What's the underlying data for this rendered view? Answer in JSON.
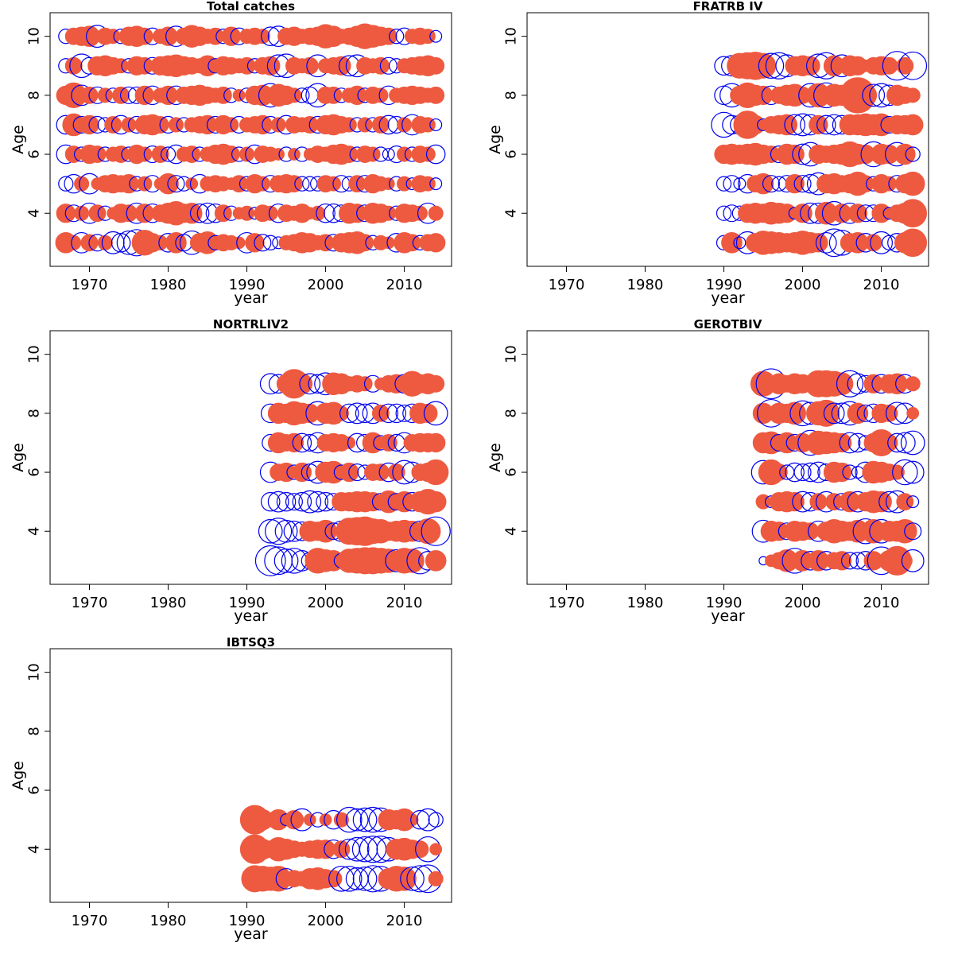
{
  "figure": {
    "pos_color": "#ee5a40",
    "neg_color": "#0000ee"
  },
  "chart_data": [
    {
      "type": "bubble",
      "title": "Total catches",
      "xlabel": "year",
      "ylabel": "Age",
      "xlim": [
        1965,
        2016
      ],
      "ylim": [
        2.2,
        10.8
      ],
      "x_ticks": [
        "1970",
        "1980",
        "1990",
        "2000",
        "2010"
      ],
      "y_ticks": [
        "4",
        "6",
        "8",
        "10"
      ],
      "ages": [
        3,
        4,
        5,
        6,
        7,
        8,
        9,
        10
      ],
      "years": [
        1967,
        2014
      ],
      "values": [
        [
          0.6,
          0.3,
          -0.6,
          0.4,
          -0.4,
          0.3,
          -0.7,
          -0.5,
          -0.8,
          -1.0,
          0.9,
          0.5,
          0.3,
          -0.5,
          0.6,
          -0.4,
          -0.8,
          0.5,
          0.7,
          -0.3,
          0.4,
          0.3,
          0.2,
          -0.6,
          0.5,
          -0.4,
          -0.3,
          -0.2,
          0.3,
          0.4,
          0.6,
          0.5,
          0.3,
          0.4,
          -0.4,
          0.5,
          0.6,
          0.7,
          0.4,
          -0.3,
          0.3,
          0.2,
          -0.5,
          0.6,
          0.4,
          -0.3,
          0.4,
          0.5
        ],
        [
          0.5,
          -0.4,
          0.3,
          -0.6,
          0.4,
          -0.3,
          0.2,
          0.5,
          0.4,
          -0.6,
          0.5,
          -0.5,
          0.4,
          0.6,
          0.8,
          0.5,
          0.6,
          -0.5,
          -0.6,
          -0.5,
          0.4,
          -0.3,
          0.2,
          0.3,
          -0.2,
          0.4,
          0.3,
          -0.5,
          0.4,
          0.3,
          0.5,
          0.2,
          0.3,
          -0.5,
          -0.5,
          -0.4,
          0.6,
          0.5,
          -0.4,
          0.6,
          0.5,
          0.3,
          -0.3,
          0.5,
          0.4,
          0.3,
          -0.6,
          0.3
        ],
        [
          -0.3,
          -0.5,
          0.3,
          -0.6,
          0.2,
          0.4,
          0.5,
          0.4,
          0.5,
          -0.3,
          0.3,
          -0.4,
          0.2,
          0.6,
          -0.4,
          -0.3,
          0.2,
          -0.5,
          0.3,
          0.4,
          0.3,
          0.2,
          0.4,
          -0.3,
          0.5,
          0.3,
          -0.4,
          0.4,
          0.5,
          0.4,
          -0.3,
          -0.3,
          -0.3,
          0.4,
          0.3,
          -0.4,
          -0.3,
          0.4,
          -0.4,
          0.5,
          0.3,
          0.2,
          -0.3,
          0.3,
          -0.2,
          0.4,
          0.3,
          -0.2
        ],
        [
          -0.5,
          0.4,
          -0.3,
          0.5,
          0.4,
          -0.3,
          0.3,
          0.4,
          -0.3,
          0.5,
          0.3,
          -0.4,
          0.4,
          -0.3,
          -0.5,
          0.3,
          0.4,
          -0.3,
          0.3,
          0.5,
          0.6,
          0.4,
          -0.3,
          0.3,
          -0.5,
          0.4,
          0.3,
          0.2,
          -0.3,
          0.2,
          -0.3,
          0.2,
          0.4,
          0.3,
          0.5,
          0.6,
          0.4,
          -0.3,
          0.4,
          0.3,
          -0.3,
          -0.2,
          -0.4,
          0.3,
          -0.3,
          0.4,
          0.3,
          -0.5
        ],
        [
          -0.5,
          0.7,
          -0.4,
          0.5,
          -0.4,
          -0.3,
          0.4,
          -0.5,
          0.3,
          -0.4,
          0.5,
          0.6,
          0.4,
          -0.4,
          0.3,
          -0.3,
          0.3,
          0.4,
          0.5,
          -0.4,
          0.5,
          0.3,
          -0.4,
          0.3,
          0.4,
          0.5,
          -0.4,
          0.3,
          -0.5,
          0.4,
          0.3,
          0.4,
          -0.4,
          0.5,
          0.6,
          0.4,
          0.3,
          -0.3,
          0.3,
          -0.3,
          0.4,
          -0.5,
          -0.4,
          0.3,
          -0.6,
          0.4,
          0.3,
          -0.2
        ],
        [
          0.5,
          0.9,
          -0.6,
          0.4,
          -0.4,
          0.3,
          -0.3,
          0.4,
          -0.4,
          -0.4,
          0.5,
          -0.5,
          0.3,
          0.5,
          -0.5,
          0.4,
          0.5,
          0.6,
          0.4,
          0.3,
          0.4,
          -0.3,
          0.2,
          -0.3,
          0.5,
          0.6,
          -0.8,
          0.7,
          0.5,
          0.3,
          -0.3,
          -0.4,
          -0.8,
          0.4,
          0.4,
          -0.3,
          0.3,
          0.5,
          -0.3,
          0.4,
          0.3,
          -0.5,
          0.3,
          0.4,
          0.5,
          0.4,
          0.3,
          0.4
        ],
        [
          -0.3,
          0.4,
          -0.8,
          -0.4,
          0.5,
          0.6,
          0.4,
          0.3,
          -0.3,
          0.5,
          0.4,
          -0.4,
          0.5,
          0.6,
          0.7,
          0.5,
          0.4,
          0.3,
          0.6,
          -0.3,
          0.5,
          0.4,
          0.3,
          0.4,
          -0.3,
          0.4,
          0.5,
          -0.7,
          -0.8,
          0.4,
          0.3,
          0.4,
          -0.7,
          0.3,
          0.4,
          0.5,
          -0.6,
          -0.7,
          0.4,
          0.3,
          0.4,
          -0.4,
          -0.3,
          0.3,
          0.4,
          0.5,
          0.6,
          0.4
        ],
        [
          -0.3,
          0.4,
          0.5,
          0.6,
          -0.7,
          0.4,
          0.3,
          -0.3,
          0.5,
          0.6,
          0.4,
          -0.4,
          0.3,
          0.5,
          -0.6,
          0.4,
          0.7,
          0.5,
          0.3,
          0.4,
          -0.3,
          0.5,
          -0.4,
          0.3,
          0.4,
          0.3,
          -0.5,
          -0.6,
          0.4,
          0.5,
          0.3,
          0.4,
          0.5,
          0.8,
          0.6,
          0.3,
          0.4,
          0.6,
          0.9,
          0.7,
          0.5,
          0.4,
          -0.3,
          -0.4,
          0.3,
          0.4,
          0.3,
          -0.2
        ]
      ]
    },
    {
      "type": "bubble",
      "title": "FRATRB IV",
      "xlabel": "year",
      "ylabel": "Age",
      "xlim": [
        1965,
        2016
      ],
      "ylim": [
        2.2,
        10.8
      ],
      "x_ticks": [
        "1970",
        "1980",
        "1990",
        "2000",
        "2010"
      ],
      "y_ticks": [
        "4",
        "6",
        "8",
        "10"
      ],
      "ages": [
        3,
        4,
        5,
        6,
        7,
        8,
        9
      ],
      "years": [
        1990,
        2014
      ],
      "values": [
        [
          -0.3,
          0.6,
          -0.2,
          -0.7,
          0.5,
          0.8,
          0.7,
          0.6,
          0.5,
          0.6,
          0.8,
          0.6,
          0.5,
          -0.6,
          -1.1,
          -0.9,
          0.5,
          0.6,
          -0.5,
          0.4,
          -0.7,
          -0.3,
          -0.5,
          0.6,
          1.1
        ],
        [
          -0.3,
          -0.4,
          -0.3,
          0.5,
          0.6,
          0.5,
          0.7,
          0.6,
          0.5,
          -0.2,
          0.5,
          -0.6,
          -0.6,
          0.7,
          -0.8,
          0.5,
          -0.6,
          0.5,
          -0.4,
          -0.4,
          0.5,
          -0.2,
          0.4,
          0.6,
          1.1
        ],
        [
          -0.3,
          -0.4,
          -0.2,
          -0.5,
          0.4,
          0.6,
          -0.4,
          -0.3,
          -0.4,
          0.5,
          -0.4,
          -0.5,
          -0.7,
          0.5,
          0.6,
          0.4,
          0.5,
          0.8,
          0.4,
          -0.3,
          0.5,
          0.3,
          -0.4,
          0.5,
          0.8
        ],
        [
          0.5,
          0.6,
          0.5,
          0.6,
          0.7,
          0.5,
          0.4,
          -0.4,
          0.6,
          0.5,
          -0.6,
          -0.8,
          0.5,
          0.4,
          0.5,
          0.6,
          0.9,
          0.6,
          0.5,
          -0.9,
          0.6,
          0.5,
          -0.8,
          0.6,
          -0.3
        ],
        [
          -0.9,
          -0.5,
          -0.5,
          1.1,
          0.5,
          -0.2,
          0.4,
          0.5,
          0.6,
          -0.6,
          -0.7,
          -0.6,
          0.5,
          -0.5,
          -0.6,
          -0.5,
          0.6,
          0.6,
          0.7,
          0.6,
          0.7,
          -0.4,
          0.5,
          0.5,
          0.6
        ],
        [
          -0.5,
          -0.8,
          0.5,
          0.9,
          0.6,
          0.5,
          -0.5,
          0.4,
          0.6,
          0.7,
          0.4,
          -0.8,
          0.8,
          -0.9,
          0.7,
          0.6,
          -0.5,
          1.8,
          0.7,
          -0.7,
          -0.8,
          -0.6,
          0.6,
          0.4,
          0.3
        ],
        [
          -0.5,
          -0.6,
          0.9,
          1.0,
          1.1,
          0.9,
          -0.9,
          -1.0,
          -0.7,
          0.5,
          0.6,
          0.5,
          -0.8,
          -1.0,
          0.6,
          -0.7,
          0.6,
          0.5,
          0.2,
          0.4,
          0.5,
          0.4,
          -1.2,
          0.4,
          -1.1
        ]
      ]
    },
    {
      "type": "bubble",
      "title": "NORTRLIV2",
      "xlabel": "year",
      "ylabel": "Age",
      "xlim": [
        1965,
        2016
      ],
      "ylim": [
        2.2,
        10.8
      ],
      "x_ticks": [
        "1970",
        "1980",
        "1990",
        "2000",
        "2010"
      ],
      "y_ticks": [
        "4",
        "6",
        "8",
        "10"
      ],
      "ages": [
        3,
        4,
        5,
        6,
        7,
        8,
        9
      ],
      "years": [
        1993,
        2014
      ],
      "values": [
        [
          -1.3,
          -1.1,
          -0.8,
          -0.9,
          -0.6,
          -0.4,
          0.9,
          0.7,
          0.6,
          -0.3,
          0.8,
          0.9,
          1.0,
          1.0,
          0.9,
          0.8,
          -0.7,
          0.9,
          0.8,
          -1.0,
          -0.5,
          0.6
        ],
        [
          -0.8,
          -1.0,
          -0.7,
          -0.6,
          -0.5,
          0.6,
          0.5,
          0.7,
          -0.4,
          -0.6,
          1.0,
          1.1,
          1.2,
          0.9,
          0.8,
          0.5,
          0.6,
          0.7,
          0.6,
          -0.6,
          0.9,
          -1.2
        ],
        [
          -0.5,
          -0.6,
          -0.5,
          -0.4,
          -0.5,
          -0.7,
          -0.6,
          -0.5,
          -0.4,
          0.5,
          0.5,
          0.6,
          0.6,
          0.5,
          -0.4,
          0.7,
          -0.4,
          0.6,
          -0.5,
          0.6,
          0.9,
          0.6
        ],
        [
          -0.6,
          0.4,
          0.5,
          -0.3,
          0.5,
          -0.4,
          -0.7,
          0.6,
          0.7,
          -0.3,
          0.5,
          -0.4,
          -0.3,
          0.4,
          0.4,
          -0.5,
          0.4,
          -0.8,
          -0.6,
          0.4,
          0.5,
          0.9
        ],
        [
          -0.4,
          0.6,
          0.4,
          0.5,
          -0.5,
          -0.4,
          -0.6,
          0.4,
          0.5,
          0.4,
          0.2,
          -0.5,
          -0.4,
          0.6,
          -0.3,
          0.4,
          -0.4,
          -0.6,
          0.4,
          0.5,
          0.5,
          0.5
        ],
        [
          -0.5,
          0.6,
          0.5,
          0.8,
          0.6,
          0.5,
          -0.8,
          0.6,
          0.7,
          0.3,
          -0.5,
          -0.6,
          -0.5,
          -0.6,
          0.4,
          -0.5,
          -0.5,
          -0.4,
          -0.5,
          0.6,
          0.5,
          -0.8
        ],
        [
          -0.6,
          -0.5,
          0.5,
          1.2,
          0.6,
          -0.6,
          -0.5,
          -0.7,
          0.7,
          0.6,
          0.3,
          0.4,
          0.3,
          -0.4,
          0.2,
          0.4,
          0.5,
          -0.5,
          0.9,
          0.5,
          0.6,
          0.4
        ]
      ]
    },
    {
      "type": "bubble",
      "title": "GEROTBIV",
      "xlabel": "year",
      "ylabel": "Age",
      "xlim": [
        1965,
        2016
      ],
      "ylim": [
        2.2,
        10.8
      ],
      "x_ticks": [
        "1970",
        "1980",
        "1990",
        "2000",
        "2010"
      ],
      "y_ticks": [
        "4",
        "6",
        "8",
        "10"
      ],
      "ages": [
        3,
        4,
        5,
        6,
        7,
        8,
        9
      ],
      "years": [
        1995,
        2014
      ],
      "values": [
        [
          -0.1,
          0.2,
          0.4,
          0.7,
          -0.9,
          0.6,
          -0.5,
          0.6,
          -0.5,
          0.4,
          0.5,
          -0.4,
          -0.4,
          -0.5,
          0.5,
          -1.1,
          0.6,
          1.2,
          0.3,
          -0.7
        ],
        [
          -0.7,
          0.6,
          0.5,
          -0.4,
          0.6,
          0.5,
          0.4,
          -0.6,
          0.5,
          0.8,
          0.6,
          0.5,
          0.7,
          -0.9,
          0.8,
          -0.8,
          0.6,
          0.6,
          0.8,
          -0.4
        ],
        [
          0.3,
          -0.2,
          0.5,
          0.6,
          0.5,
          -0.6,
          -0.5,
          0.4,
          -0.6,
          0.4,
          -0.4,
          0.6,
          -0.6,
          0.5,
          0.7,
          0.6,
          -0.6,
          -0.7,
          0.4,
          -0.2
        ],
        [
          -0.8,
          0.9,
          0.4,
          -0.3,
          -0.5,
          -0.4,
          -0.5,
          -0.6,
          -0.4,
          0.6,
          0.5,
          -0.3,
          -0.2,
          -0.6,
          0.7,
          0.6,
          0.4,
          0.3,
          -0.9,
          -0.7
        ],
        [
          0.6,
          0.7,
          -0.4,
          0.6,
          -0.4,
          0.5,
          -0.9,
          0.8,
          0.7,
          0.6,
          0.5,
          -0.6,
          -0.5,
          -0.3,
          0.5,
          1.0,
          0.4,
          -0.5,
          -0.6,
          -0.8
        ],
        [
          0.6,
          -1.1,
          0.6,
          0.5,
          0.7,
          -0.9,
          -0.7,
          0.8,
          1.0,
          -0.6,
          -0.6,
          -0.8,
          0.6,
          -0.4,
          -0.5,
          0.5,
          0.4,
          -0.7,
          -0.6,
          0.2
        ],
        [
          0.9,
          -1.3,
          0.6,
          0.4,
          0.6,
          0.5,
          0.3,
          1.0,
          1.0,
          0.9,
          0.7,
          -1.0,
          -0.6,
          -0.4,
          0.5,
          -0.5,
          0.5,
          0.6,
          -0.5,
          0.3
        ]
      ]
    },
    {
      "type": "bubble",
      "title": "IBTSQ3",
      "xlabel": "year",
      "ylabel": "Age",
      "xlim": [
        1965,
        2016
      ],
      "ylim": [
        2.2,
        10.8
      ],
      "x_ticks": [
        "1970",
        "1980",
        "1990",
        "2000",
        "2010"
      ],
      "y_ticks": [
        "4",
        "6",
        "8",
        "10"
      ],
      "ages": [
        3,
        4,
        5
      ],
      "years": [
        1991,
        2014
      ],
      "values": [
        [
          1.0,
          0.9,
          0.8,
          0.9,
          -0.6,
          0.4,
          0.3,
          0.6,
          0.7,
          0.5,
          0.4,
          -0.9,
          -0.9,
          -0.7,
          -0.8,
          -1.0,
          -0.9,
          0.6,
          0.9,
          0.8,
          -0.8,
          -1.0,
          -1.1,
          0.3
        ],
        [
          1.2,
          0.6,
          0.4,
          0.8,
          0.6,
          0.4,
          0.3,
          0.4,
          0.5,
          0.5,
          -0.5,
          0.4,
          -0.6,
          -0.8,
          -0.9,
          -1.0,
          -1.0,
          -0.8,
          0.6,
          0.7,
          0.5,
          0.4,
          -0.9,
          0.2
        ],
        [
          1.2,
          0.6,
          0.3,
          0.6,
          -0.2,
          0.5,
          -0.7,
          0.2,
          -0.3,
          0.2,
          -0.5,
          0.3,
          -0.9,
          -0.7,
          -0.8,
          -0.9,
          -0.8,
          0.6,
          0.5,
          0.7,
          0.2,
          -0.5,
          -0.7,
          -0.3
        ]
      ]
    }
  ]
}
